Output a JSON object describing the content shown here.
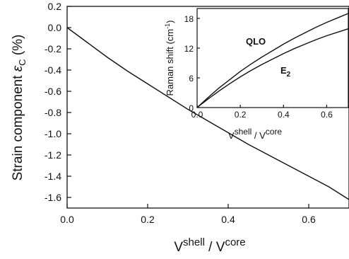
{
  "chart_data": [
    {
      "type": "line",
      "xlabel": {
        "base": "V",
        "sup": "shell",
        "sep": " / ",
        "base2": "V",
        "sup2": "core"
      },
      "ylabel": {
        "pre": "Strain component ",
        "sym": "ε",
        "sub": "C",
        "post": " (%)"
      },
      "xlim": [
        0,
        0.7
      ],
      "ylim": [
        -1.7,
        0.2
      ],
      "x_ticks": [
        0.0,
        0.2,
        0.4,
        0.6
      ],
      "x_tick_labels": [
        "0.0",
        "0.2",
        "0.4",
        "0.6"
      ],
      "y_ticks": [
        0.2,
        0.0,
        -0.2,
        -0.4,
        -0.6,
        -0.8,
        -1.0,
        -1.2,
        -1.4,
        -1.6
      ],
      "y_tick_labels": [
        "0.2",
        "0.0",
        "-0.2",
        "-0.4",
        "-0.6",
        "-0.8",
        "-1.0",
        "-1.2",
        "-1.4",
        "-1.6"
      ],
      "series": [
        {
          "x": [
            0.0,
            0.05,
            0.1,
            0.15,
            0.2,
            0.25,
            0.3,
            0.35,
            0.4,
            0.45,
            0.5,
            0.55,
            0.6,
            0.65,
            0.7
          ],
          "y": [
            0.0,
            -0.14,
            -0.28,
            -0.41,
            -0.53,
            -0.65,
            -0.77,
            -0.88,
            -0.99,
            -1.1,
            -1.2,
            -1.3,
            -1.4,
            -1.5,
            -1.62
          ]
        }
      ]
    },
    {
      "type": "line",
      "xlabel": {
        "base": "V",
        "sup": "shell",
        "sep": " / ",
        "base2": "V",
        "sup2": "core"
      },
      "ylabel": "Raman shift (cm",
      "ylabel_sup": "-1",
      "ylabel_close": ")",
      "xlim": [
        0,
        0.7
      ],
      "ylim": [
        0,
        20
      ],
      "x_ticks": [
        0.0,
        0.2,
        0.4,
        0.6
      ],
      "x_tick_labels": [
        "0.0",
        "0.2",
        "0.4",
        "0.6"
      ],
      "y_ticks": [
        0,
        6,
        12,
        18
      ],
      "y_tick_labels": [
        "0",
        "6",
        "12",
        "18"
      ],
      "series": [
        {
          "name": "QLO",
          "x": [
            0.0,
            0.05,
            0.1,
            0.15,
            0.2,
            0.25,
            0.3,
            0.35,
            0.4,
            0.45,
            0.5,
            0.55,
            0.6,
            0.65,
            0.7
          ],
          "y": [
            0.0,
            2.0,
            3.9,
            5.6,
            7.3,
            8.8,
            10.2,
            11.5,
            12.8,
            14.0,
            15.1,
            16.2,
            17.2,
            18.1,
            19.0
          ]
        },
        {
          "name": "E",
          "name_sub": "2",
          "x": [
            0.0,
            0.05,
            0.1,
            0.15,
            0.2,
            0.25,
            0.3,
            0.35,
            0.4,
            0.45,
            0.5,
            0.55,
            0.6,
            0.65,
            0.7
          ],
          "y": [
            0.0,
            1.7,
            3.3,
            4.8,
            6.2,
            7.5,
            8.7,
            9.8,
            10.9,
            11.9,
            12.8,
            13.7,
            14.5,
            15.2,
            15.9
          ]
        }
      ]
    }
  ]
}
